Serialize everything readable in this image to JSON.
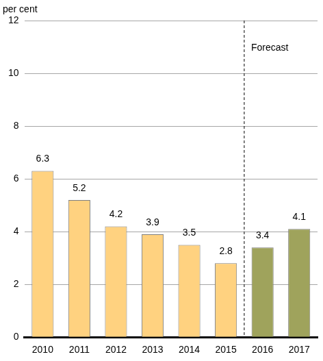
{
  "chart_data": {
    "type": "bar",
    "y_label": "per cent",
    "categories": [
      "2010",
      "2011",
      "2012",
      "2013",
      "2014",
      "2015",
      "2016",
      "2017"
    ],
    "values": [
      6.3,
      5.2,
      4.2,
      3.9,
      3.5,
      2.8,
      3.4,
      4.1
    ],
    "colors": [
      "#ffd280",
      "#ffd280",
      "#ffd280",
      "#ffd280",
      "#ffd280",
      "#ffd280",
      "#9fa35c",
      "#9fa35c"
    ],
    "ylim": [
      0,
      12
    ],
    "yticks": [
      0,
      2,
      4,
      6,
      8,
      10,
      12
    ],
    "grid": true,
    "data_labels": true,
    "annotations": [
      {
        "text": "Forecast",
        "x": "2016"
      }
    ]
  }
}
